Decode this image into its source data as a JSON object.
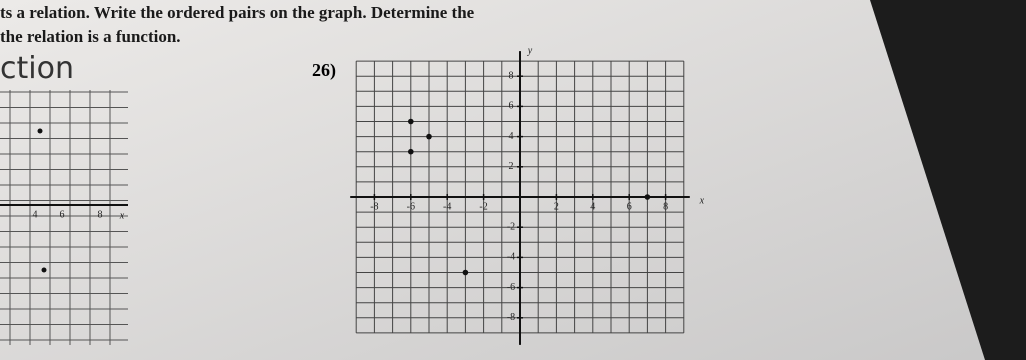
{
  "instructions": {
    "line1": "ts a relation. Write the ordered pairs on the graph. Determine the",
    "line2": "the relation is a function."
  },
  "handwriting": "ction",
  "left_graph": {
    "tick_labels": [
      "4",
      "6",
      "8"
    ],
    "axis_label": "x"
  },
  "problem": {
    "number": "26)",
    "graph": {
      "x_label": "x",
      "y_label": "y",
      "xlim": [
        -9,
        9
      ],
      "ylim": [
        -9,
        9
      ],
      "xticks": [
        -8,
        -6,
        -4,
        -2,
        2,
        4,
        6,
        8
      ],
      "yticks": [
        8,
        6,
        4,
        2,
        -2,
        -4,
        -6,
        -8
      ],
      "points": [
        {
          "x": -6,
          "y": 5
        },
        {
          "x": -5,
          "y": 4
        },
        {
          "x": -6,
          "y": 3
        },
        {
          "x": -3,
          "y": -5
        },
        {
          "x": 7,
          "y": 0
        }
      ]
    }
  }
}
